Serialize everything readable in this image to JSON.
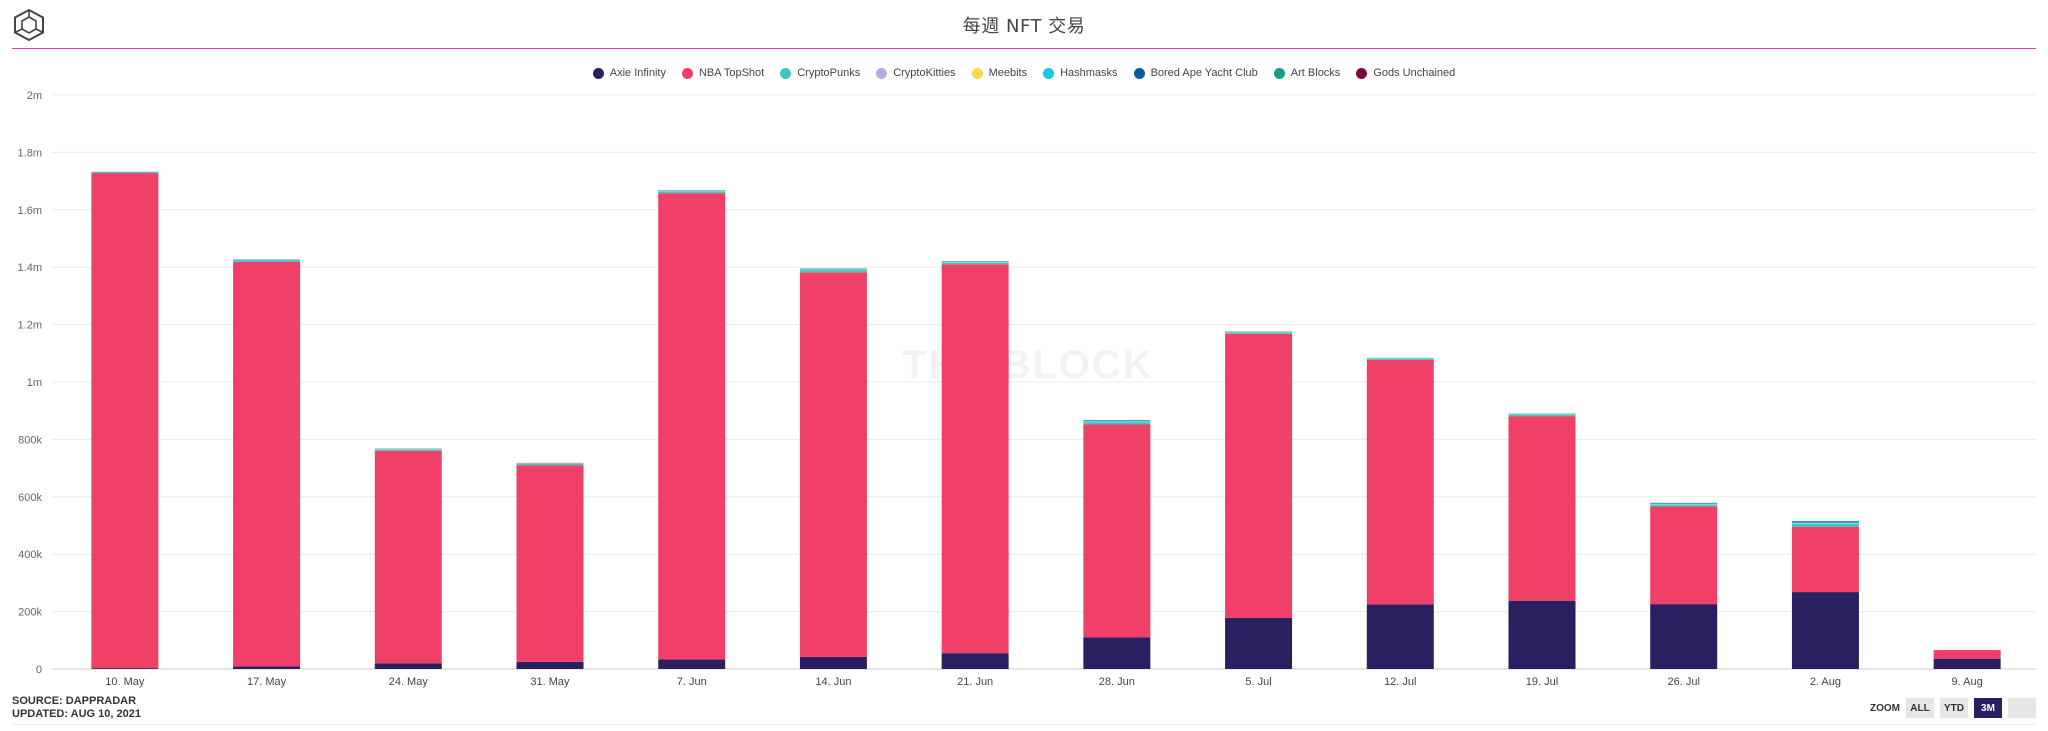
{
  "header": {
    "title": "每週 NFT 交易"
  },
  "logo_icon": "cube-logo-icon",
  "watermark": "THE BLOCK",
  "source": {
    "line1": "SOURCE: DAPPRADAR",
    "line2": "UPDATED: AUG 10, 2021"
  },
  "zoom": {
    "label": "ZOOM",
    "buttons": [
      "ALL",
      "YTD",
      "3M",
      ""
    ],
    "active": "3M"
  },
  "colors": {
    "Axie Infinity": "#2a1f5f",
    "NBA TopShot": "#f04068",
    "CryptoPunks": "#3cc8c0",
    "CryptoKitties": "#b8a8e0",
    "Meebits": "#f8d84c",
    "Hashmasks": "#18c8e8",
    "Bored Ape Yacht Club": "#0a5a9a",
    "Art Blocks": "#1a9a8a",
    "Gods Unchained": "#7a0a3a"
  },
  "chart_data": {
    "type": "bar",
    "stacked": true,
    "title": "每週 NFT 交易",
    "categories": [
      "10. May",
      "17. May",
      "24. May",
      "31. May",
      "7. Jun",
      "14. Jun",
      "21. Jun",
      "28. Jun",
      "5. Jul",
      "12. Jul",
      "19. Jul",
      "26. Jul",
      "2. Aug",
      "9. Aug"
    ],
    "y_ticks": [
      "0",
      "200k",
      "400k",
      "600k",
      "800k",
      "1m",
      "1.2m",
      "1.4m",
      "1.6m",
      "1.8m",
      "2m"
    ],
    "ylim": [
      0,
      2000000
    ],
    "series": [
      {
        "name": "Axie Infinity",
        "values": [
          3000,
          9000,
          20000,
          25000,
          33000,
          42000,
          55000,
          110000,
          178000,
          225000,
          238000,
          226000,
          268000,
          36000
        ]
      },
      {
        "name": "NBA TopShot",
        "values": [
          1725000,
          1410000,
          740000,
          685000,
          1625000,
          1340000,
          1355000,
          742000,
          990000,
          852000,
          643000,
          340000,
          228000,
          30000
        ]
      },
      {
        "name": "CryptoPunks",
        "values": [
          4000,
          6000,
          5000,
          5000,
          6000,
          8000,
          6000,
          8000,
          5000,
          4000,
          4000,
          6000,
          10000,
          0
        ]
      },
      {
        "name": "CryptoKitties",
        "values": [
          1000,
          1000,
          1000,
          1000,
          1000,
          1000,
          1000,
          1000,
          1000,
          1000,
          1000,
          1000,
          1000,
          0
        ]
      },
      {
        "name": "Meebits",
        "values": [
          0,
          0,
          1000,
          1000,
          1000,
          1000,
          1000,
          1000,
          1000,
          1000,
          1000,
          1000,
          1000,
          0
        ]
      },
      {
        "name": "Hashmasks",
        "values": [
          0,
          0,
          0,
          0,
          1000,
          1000,
          0,
          3000,
          0,
          0,
          1000,
          2000,
          3000,
          0
        ]
      },
      {
        "name": "Bored Ape Yacht Club",
        "values": [
          0,
          1000,
          1000,
          1000,
          1000,
          2000,
          2000,
          2000,
          1000,
          1000,
          1000,
          1000,
          2000,
          0
        ]
      },
      {
        "name": "Art Blocks",
        "values": [
          0,
          0,
          0,
          0,
          0,
          0,
          0,
          0,
          0,
          0,
          1000,
          2000,
          3000,
          0
        ]
      },
      {
        "name": "Gods Unchained",
        "values": [
          0,
          0,
          0,
          0,
          0,
          0,
          0,
          0,
          0,
          0,
          0,
          0,
          0,
          0
        ]
      }
    ]
  }
}
